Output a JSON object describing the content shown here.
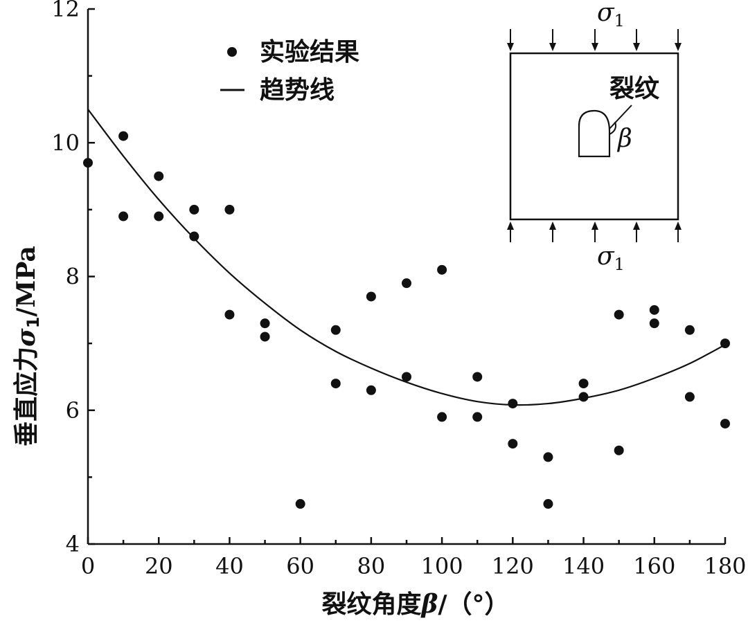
{
  "chart_data": {
    "type": "scatter",
    "xlabel": "裂纹角度",
    "xlabel_symbol": "β",
    "xlabel_unit": "/（°）",
    "ylabel": "垂直应力",
    "ylabel_symbol": "σ",
    "ylabel_subscript": "1",
    "ylabel_unit": "/MPa",
    "xlim": [
      0,
      180
    ],
    "ylim": [
      4,
      12
    ],
    "x_ticks": [
      0,
      20,
      40,
      60,
      80,
      100,
      120,
      140,
      160,
      180
    ],
    "y_ticks": [
      4,
      6,
      8,
      10,
      12
    ],
    "grid": false,
    "legend_position": "top-left",
    "series": [
      {
        "name": "实验结果",
        "kind": "points",
        "x": [
          0,
          10,
          10,
          20,
          20,
          30,
          30,
          40,
          40,
          50,
          50,
          60,
          70,
          70,
          80,
          80,
          90,
          90,
          100,
          100,
          110,
          110,
          120,
          120,
          130,
          130,
          140,
          140,
          150,
          150,
          160,
          160,
          170,
          170,
          180,
          180
        ],
        "y": [
          9.7,
          10.1,
          8.9,
          9.5,
          8.9,
          9.0,
          8.6,
          9.0,
          7.43,
          7.3,
          7.1,
          4.6,
          7.2,
          6.4,
          7.7,
          6.3,
          7.9,
          6.5,
          8.1,
          5.9,
          6.5,
          5.9,
          6.1,
          5.5,
          5.3,
          4.6,
          6.4,
          6.2,
          7.43,
          5.4,
          7.5,
          7.3,
          7.2,
          6.2,
          7.0,
          5.8
        ]
      },
      {
        "name": "趋势线",
        "kind": "line",
        "x": [
          0,
          10,
          20,
          30,
          40,
          50,
          60,
          70,
          80,
          90,
          100,
          110,
          120,
          130,
          140,
          150,
          160,
          170,
          180
        ],
        "y": [
          10.5,
          9.8,
          9.15,
          8.57,
          8.05,
          7.6,
          7.2,
          6.88,
          6.63,
          6.42,
          6.25,
          6.13,
          6.08,
          6.1,
          6.18,
          6.3,
          6.48,
          6.7,
          6.98
        ]
      }
    ],
    "inset": {
      "top_load_label": "σ",
      "top_load_subscript": "1",
      "bottom_load_label": "σ",
      "bottom_load_subscript": "1",
      "crack_label": "裂纹",
      "angle_label": "β"
    }
  }
}
